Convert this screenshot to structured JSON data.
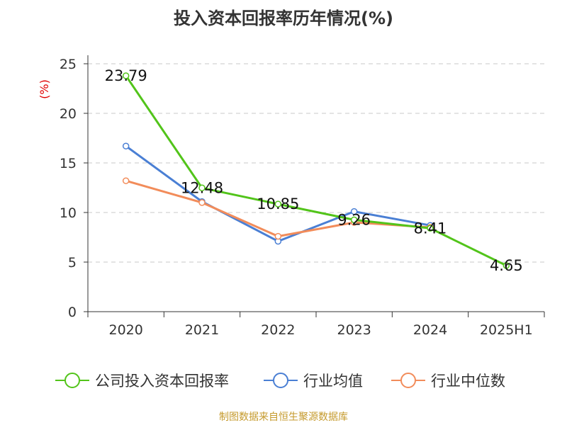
{
  "chart_data": {
    "type": "line",
    "title": "投入资本回报率历年情况(%)",
    "ylabel": "(%)",
    "xlabel": "",
    "categories": [
      "2020",
      "2021",
      "2022",
      "2023",
      "2024",
      "2025H1"
    ],
    "ylim": [
      0,
      25
    ],
    "yticks": [
      0,
      5,
      10,
      15,
      20,
      25
    ],
    "grid": true,
    "legend_position": "bottom",
    "series": [
      {
        "name": "公司投入资本回报率",
        "color": "#52c41a",
        "values": [
          23.79,
          12.48,
          10.85,
          9.26,
          8.41,
          4.65
        ],
        "labels": [
          "23.79",
          "12.48",
          "10.85",
          "9.26",
          "8.41",
          "4.65"
        ]
      },
      {
        "name": "行业均值",
        "color": "#4a7fd4",
        "values": [
          16.7,
          11.1,
          7.1,
          10.1,
          8.7,
          null
        ]
      },
      {
        "name": "行业中位数",
        "color": "#f28c5a",
        "values": [
          13.2,
          11.0,
          7.6,
          9.0,
          8.5,
          null
        ]
      }
    ]
  },
  "footer": "制图数据来自恒生聚源数据库"
}
